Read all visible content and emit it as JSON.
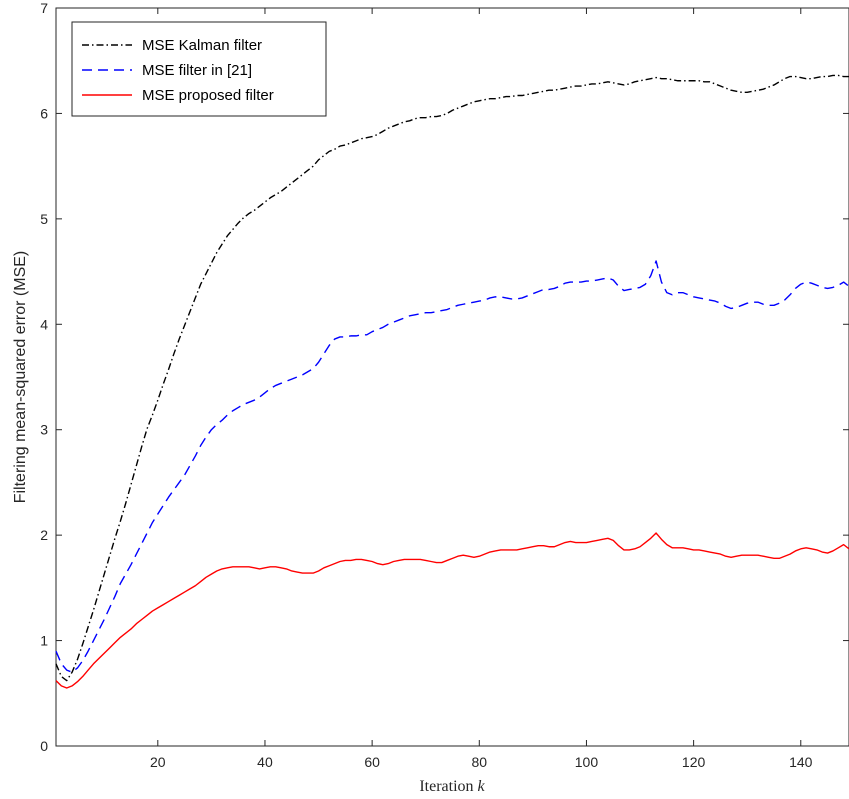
{
  "chart_data": {
    "type": "line",
    "title": "",
    "xlabel": "Iteration",
    "xlabel_var": "k",
    "ylabel": "Filtering mean-squared error (MSE)",
    "xlim": [
      1,
      149
    ],
    "ylim": [
      0,
      7
    ],
    "xticks": [
      20,
      40,
      60,
      80,
      100,
      120,
      140
    ],
    "yticks": [
      0,
      1,
      2,
      3,
      4,
      5,
      6,
      7
    ],
    "grid": false,
    "legend_position": "top-left",
    "x": [
      1,
      2,
      3,
      4,
      5,
      6,
      7,
      8,
      9,
      10,
      11,
      12,
      13,
      14,
      15,
      16,
      17,
      18,
      19,
      20,
      21,
      22,
      23,
      24,
      25,
      26,
      27,
      28,
      29,
      30,
      31,
      32,
      33,
      34,
      35,
      36,
      37,
      38,
      39,
      40,
      41,
      42,
      43,
      44,
      45,
      46,
      47,
      48,
      49,
      50,
      51,
      52,
      53,
      54,
      55,
      56,
      57,
      58,
      59,
      60,
      61,
      62,
      63,
      64,
      65,
      66,
      67,
      68,
      69,
      70,
      71,
      72,
      73,
      74,
      75,
      76,
      77,
      78,
      79,
      80,
      81,
      82,
      83,
      84,
      85,
      86,
      87,
      88,
      89,
      90,
      91,
      92,
      93,
      94,
      95,
      96,
      97,
      98,
      99,
      100,
      101,
      102,
      103,
      104,
      105,
      106,
      107,
      108,
      109,
      110,
      111,
      112,
      113,
      114,
      115,
      116,
      117,
      118,
      119,
      120,
      121,
      122,
      123,
      124,
      125,
      126,
      127,
      128,
      129,
      130,
      131,
      132,
      133,
      134,
      135,
      136,
      137,
      138,
      139,
      140,
      141,
      142,
      143,
      144,
      145,
      146,
      147,
      148,
      149
    ],
    "series": [
      {
        "name": "MSE Kalman filter",
        "color": "#000000",
        "dash": "dashdot",
        "values": [
          0.78,
          0.66,
          0.62,
          0.7,
          0.82,
          0.97,
          1.13,
          1.29,
          1.46,
          1.63,
          1.8,
          1.97,
          2.13,
          2.3,
          2.48,
          2.66,
          2.84,
          3.01,
          3.14,
          3.28,
          3.43,
          3.57,
          3.72,
          3.86,
          3.99,
          4.12,
          4.25,
          4.38,
          4.48,
          4.58,
          4.68,
          4.76,
          4.84,
          4.9,
          4.96,
          5.01,
          5.05,
          5.08,
          5.12,
          5.16,
          5.2,
          5.23,
          5.26,
          5.3,
          5.34,
          5.38,
          5.42,
          5.46,
          5.5,
          5.56,
          5.6,
          5.64,
          5.66,
          5.69,
          5.7,
          5.72,
          5.74,
          5.76,
          5.77,
          5.78,
          5.8,
          5.83,
          5.86,
          5.88,
          5.9,
          5.92,
          5.93,
          5.95,
          5.96,
          5.96,
          5.97,
          5.97,
          5.98,
          6.0,
          6.03,
          6.05,
          6.07,
          6.09,
          6.11,
          6.12,
          6.13,
          6.14,
          6.14,
          6.15,
          6.16,
          6.16,
          6.17,
          6.17,
          6.18,
          6.19,
          6.2,
          6.21,
          6.22,
          6.22,
          6.23,
          6.24,
          6.25,
          6.26,
          6.26,
          6.27,
          6.28,
          6.28,
          6.29,
          6.3,
          6.29,
          6.28,
          6.27,
          6.28,
          6.3,
          6.31,
          6.32,
          6.33,
          6.34,
          6.33,
          6.33,
          6.32,
          6.31,
          6.31,
          6.31,
          6.31,
          6.31,
          6.3,
          6.3,
          6.28,
          6.26,
          6.24,
          6.22,
          6.21,
          6.2,
          6.2,
          6.21,
          6.22,
          6.23,
          6.25,
          6.27,
          6.3,
          6.33,
          6.35,
          6.35,
          6.34,
          6.33,
          6.33,
          6.34,
          6.35,
          6.35,
          6.36,
          6.36,
          6.35,
          6.35
        ]
      },
      {
        "name": "MSE filter in [21]",
        "color": "#0000ff",
        "dash": "dashed",
        "values": [
          0.9,
          0.78,
          0.72,
          0.7,
          0.74,
          0.81,
          0.9,
          1.0,
          1.1,
          1.2,
          1.31,
          1.42,
          1.54,
          1.63,
          1.72,
          1.82,
          1.92,
          2.02,
          2.12,
          2.2,
          2.28,
          2.36,
          2.43,
          2.5,
          2.57,
          2.66,
          2.75,
          2.85,
          2.93,
          3.0,
          3.05,
          3.09,
          3.14,
          3.18,
          3.21,
          3.24,
          3.26,
          3.28,
          3.31,
          3.35,
          3.39,
          3.42,
          3.44,
          3.46,
          3.48,
          3.5,
          3.52,
          3.55,
          3.58,
          3.64,
          3.72,
          3.8,
          3.86,
          3.88,
          3.88,
          3.89,
          3.89,
          3.9,
          3.9,
          3.93,
          3.95,
          3.97,
          4.0,
          4.02,
          4.04,
          4.06,
          4.08,
          4.09,
          4.1,
          4.11,
          4.11,
          4.12,
          4.13,
          4.14,
          4.16,
          4.18,
          4.19,
          4.2,
          4.21,
          4.22,
          4.23,
          4.25,
          4.26,
          4.26,
          4.25,
          4.24,
          4.24,
          4.25,
          4.27,
          4.29,
          4.31,
          4.33,
          4.33,
          4.34,
          4.36,
          4.39,
          4.4,
          4.4,
          4.4,
          4.41,
          4.41,
          4.42,
          4.43,
          4.44,
          4.42,
          4.36,
          4.32,
          4.33,
          4.34,
          4.35,
          4.38,
          4.46,
          4.6,
          4.4,
          4.3,
          4.28,
          4.3,
          4.3,
          4.28,
          4.26,
          4.25,
          4.24,
          4.23,
          4.22,
          4.2,
          4.17,
          4.15,
          4.16,
          4.18,
          4.2,
          4.21,
          4.21,
          4.19,
          4.18,
          4.18,
          4.2,
          4.23,
          4.28,
          4.34,
          4.38,
          4.4,
          4.39,
          4.37,
          4.35,
          4.34,
          4.35,
          4.37,
          4.4,
          4.36
        ]
      },
      {
        "name": "MSE proposed filter",
        "color": "#ff0000",
        "dash": "solid",
        "values": [
          0.62,
          0.57,
          0.55,
          0.57,
          0.61,
          0.66,
          0.72,
          0.78,
          0.83,
          0.88,
          0.93,
          0.98,
          1.03,
          1.07,
          1.11,
          1.16,
          1.2,
          1.24,
          1.28,
          1.31,
          1.34,
          1.37,
          1.4,
          1.43,
          1.46,
          1.49,
          1.52,
          1.56,
          1.6,
          1.63,
          1.66,
          1.68,
          1.69,
          1.7,
          1.7,
          1.7,
          1.7,
          1.69,
          1.68,
          1.69,
          1.7,
          1.7,
          1.69,
          1.68,
          1.66,
          1.65,
          1.64,
          1.64,
          1.64,
          1.66,
          1.69,
          1.71,
          1.73,
          1.75,
          1.76,
          1.76,
          1.77,
          1.77,
          1.76,
          1.75,
          1.73,
          1.72,
          1.73,
          1.75,
          1.76,
          1.77,
          1.77,
          1.77,
          1.77,
          1.76,
          1.75,
          1.74,
          1.74,
          1.76,
          1.78,
          1.8,
          1.81,
          1.8,
          1.79,
          1.8,
          1.82,
          1.84,
          1.85,
          1.86,
          1.86,
          1.86,
          1.86,
          1.87,
          1.88,
          1.89,
          1.9,
          1.9,
          1.89,
          1.89,
          1.91,
          1.93,
          1.94,
          1.93,
          1.93,
          1.93,
          1.94,
          1.95,
          1.96,
          1.97,
          1.95,
          1.9,
          1.86,
          1.86,
          1.87,
          1.89,
          1.93,
          1.97,
          2.02,
          1.96,
          1.91,
          1.88,
          1.88,
          1.88,
          1.87,
          1.86,
          1.86,
          1.85,
          1.84,
          1.83,
          1.82,
          1.8,
          1.79,
          1.8,
          1.81,
          1.81,
          1.81,
          1.81,
          1.8,
          1.79,
          1.78,
          1.78,
          1.8,
          1.82,
          1.85,
          1.87,
          1.88,
          1.87,
          1.86,
          1.84,
          1.83,
          1.85,
          1.88,
          1.91,
          1.87
        ]
      }
    ]
  }
}
